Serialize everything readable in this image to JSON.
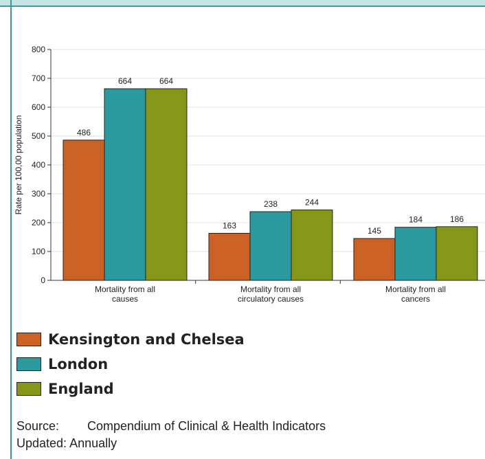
{
  "chart_data": {
    "type": "bar",
    "ylabel": "Rate per 100,00 population",
    "ylim": [
      0,
      800
    ],
    "yticks": [
      0,
      100,
      200,
      300,
      400,
      500,
      600,
      700,
      800
    ],
    "categories": [
      [
        "Mortality from all",
        "causes"
      ],
      [
        "Mortality from all",
        "circulatory causes"
      ],
      [
        "Mortality from all",
        "cancers"
      ]
    ],
    "series": [
      {
        "name": "Kensington and Chelsea",
        "color": "#cc6126",
        "values": [
          486,
          163,
          145
        ]
      },
      {
        "name": "London",
        "color": "#2a9a9e",
        "values": [
          664,
          238,
          184
        ]
      },
      {
        "name": "England",
        "color": "#859619",
        "values": [
          664,
          244,
          186
        ]
      }
    ],
    "legend_position": "bottom",
    "grid": true
  },
  "footer": {
    "source_label": "Source:",
    "source_text": "Compendium of Clinical & Health Indicators",
    "updated_label": "Updated:",
    "updated_text": "Annually"
  }
}
